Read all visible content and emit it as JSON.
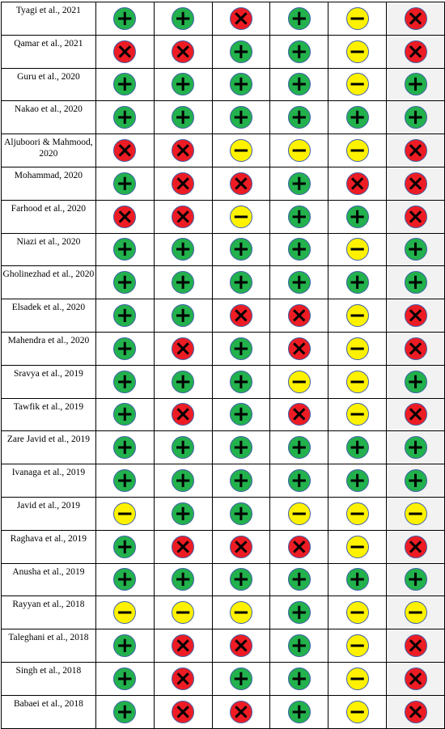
{
  "symbol_colors": {
    "+": "#22b14c",
    "×": "#ed1c24",
    "−": "#fff200"
  },
  "table": {
    "rows": [
      {
        "label": "Tyagi et al., 2021",
        "ratings": [
          "+",
          "+",
          "×",
          "+",
          "−",
          "×"
        ]
      },
      {
        "label": "Qamar et al., 2021",
        "ratings": [
          "×",
          "×",
          "+",
          "+",
          "−",
          "×"
        ]
      },
      {
        "label": "Guru et al., 2020",
        "ratings": [
          "+",
          "+",
          "+",
          "+",
          "−",
          "+"
        ]
      },
      {
        "label": "Nakao et al., 2020",
        "ratings": [
          "+",
          "+",
          "+",
          "+",
          "+",
          "+"
        ]
      },
      {
        "label": "Aljuboori & Mahmood, 2020",
        "ratings": [
          "×",
          "×",
          "−",
          "−",
          "−",
          "×"
        ]
      },
      {
        "label": "Mohammad, 2020",
        "ratings": [
          "+",
          "×",
          "×",
          "+",
          "×",
          "×"
        ]
      },
      {
        "label": "Farhood et al., 2020",
        "ratings": [
          "×",
          "×",
          "−",
          "+",
          "+",
          "×"
        ]
      },
      {
        "label": "Niazi et al., 2020",
        "ratings": [
          "+",
          "+",
          "+",
          "+",
          "−",
          "+"
        ]
      },
      {
        "label": "Gholinezhad et al., 2020",
        "ratings": [
          "+",
          "+",
          "+",
          "+",
          "+",
          "+"
        ]
      },
      {
        "label": "Elsadek et al., 2020",
        "ratings": [
          "+",
          "+",
          "×",
          "×",
          "−",
          "×"
        ]
      },
      {
        "label": "Mahendra et al., 2020",
        "ratings": [
          "+",
          "×",
          "+",
          "×",
          "−",
          "×"
        ]
      },
      {
        "label": "Sravya et al., 2019",
        "ratings": [
          "+",
          "+",
          "+",
          "−",
          "−",
          "+"
        ]
      },
      {
        "label": "Tawfik et al., 2019",
        "ratings": [
          "+",
          "×",
          "+",
          "×",
          "−",
          "×"
        ]
      },
      {
        "label": "Zare Javid et al., 2019",
        "ratings": [
          "+",
          "+",
          "+",
          "+",
          "+",
          "+"
        ]
      },
      {
        "label": "Ivanaga et al., 2019",
        "ratings": [
          "+",
          "+",
          "+",
          "+",
          "+",
          "+"
        ]
      },
      {
        "label": "Javid et al., 2019",
        "ratings": [
          "−",
          "+",
          "+",
          "−",
          "−",
          "−"
        ]
      },
      {
        "label": "Raghava et al., 2019",
        "ratings": [
          "+",
          "×",
          "×",
          "×",
          "−",
          "×"
        ]
      },
      {
        "label": "Anusha et al., 2019",
        "ratings": [
          "+",
          "+",
          "+",
          "+",
          "+",
          "+"
        ]
      },
      {
        "label": "Rayyan et al., 2018",
        "ratings": [
          "−",
          "−",
          "−",
          "+",
          "−",
          "−"
        ]
      },
      {
        "label": "Taleghani et al., 2018",
        "ratings": [
          "+",
          "×",
          "×",
          "+",
          "−",
          "×"
        ]
      },
      {
        "label": "Singh et al., 2018",
        "ratings": [
          "+",
          "×",
          "+",
          "+",
          "−",
          "×"
        ]
      },
      {
        "label": "Babaei et al., 2018",
        "ratings": [
          "+",
          "×",
          "×",
          "+",
          "−",
          "×"
        ]
      }
    ]
  }
}
